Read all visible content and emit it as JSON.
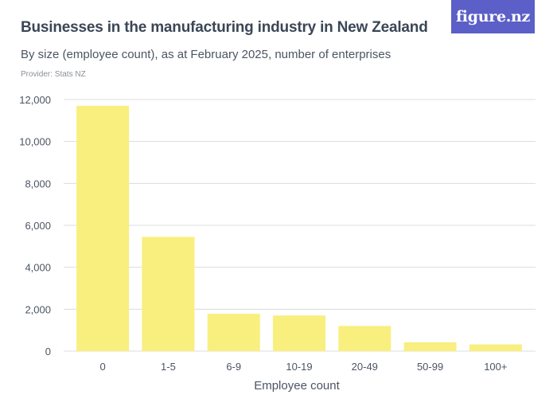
{
  "header": {
    "title": "Businesses in the manufacturing industry in New Zealand",
    "subtitle": "By size (employee count), as at February 2025, number of enterprises",
    "provider": "Provider: Stats NZ",
    "logo_text": "figure.nz"
  },
  "colors": {
    "bar": "#f8ef7e",
    "grid": "#dcdcdc",
    "logo_bg": "#5b5fc7"
  },
  "chart_data": {
    "type": "bar",
    "title": "Businesses in the manufacturing industry in New Zealand",
    "xlabel": "Employee count",
    "ylabel": "",
    "categories": [
      "0",
      "1-5",
      "6-9",
      "10-19",
      "20-49",
      "50-99",
      "100+"
    ],
    "values": [
      11700,
      5450,
      1780,
      1700,
      1200,
      420,
      320
    ],
    "ylim": [
      0,
      12000
    ],
    "yticks": [
      0,
      2000,
      4000,
      6000,
      8000,
      10000,
      12000
    ],
    "ytick_labels": [
      "0",
      "2,000",
      "4,000",
      "6,000",
      "8,000",
      "10,000",
      "12,000"
    ],
    "grid": true,
    "legend": "none"
  }
}
